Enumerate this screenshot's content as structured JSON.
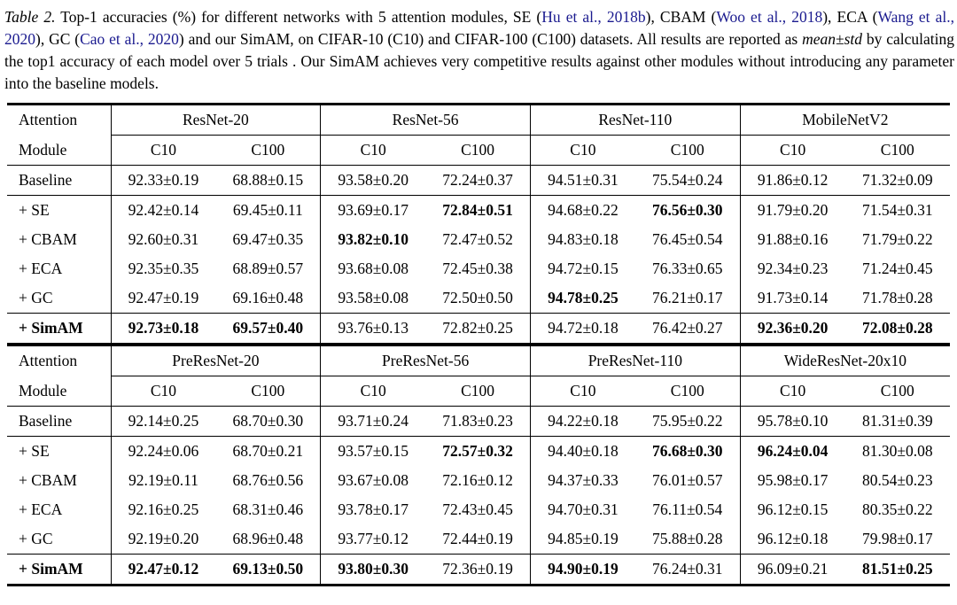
{
  "caption": {
    "segments": [
      {
        "text": "Table 2."
      },
      {
        "text": " Top-1 accuracies (%) for different networks with 5 attention modules, SE ("
      },
      {
        "text": "Hu et al., 2018b"
      },
      {
        "text": "), CBAM ("
      },
      {
        "text": "Woo et al., 2018"
      },
      {
        "text": "), ECA ("
      },
      {
        "text": "Wang et al., 2020"
      },
      {
        "text": "), GC ("
      },
      {
        "text": "Cao et al., 2020"
      },
      {
        "text": ") and our SimAM, on CIFAR-10 (C10) and CIFAR-100 (C100) datasets. All results are reported as "
      },
      {
        "text": "mean±std"
      },
      {
        "text": " by calculating the top1 accuracy of each model over 5 trials . Our SimAM achieves very competitive results against other modules without introducing any parameter into the baseline models."
      }
    ]
  },
  "colors": {
    "citation_blue": "#1b1b8f",
    "text": "#000000",
    "background": "#ffffff"
  },
  "table": {
    "col_header": {
      "line1": "Attention",
      "line2": "Module"
    },
    "subheaders": [
      "C10",
      "C100"
    ],
    "sections": [
      {
        "networks": [
          "ResNet-20",
          "ResNet-56",
          "ResNet-110",
          "MobileNetV2"
        ],
        "rows": [
          {
            "label": "Baseline",
            "bold_label": false,
            "values": [
              "92.33±0.19",
              "68.88±0.15",
              "93.58±0.20",
              "72.24±0.37",
              "94.51±0.31",
              "75.54±0.24",
              "91.86±0.12",
              "71.32±0.09"
            ],
            "bold": [
              false,
              false,
              false,
              false,
              false,
              false,
              false,
              false
            ]
          },
          {
            "label": "+ SE",
            "bold_label": false,
            "values": [
              "92.42±0.14",
              "69.45±0.11",
              "93.69±0.17",
              "72.84±0.51",
              "94.68±0.22",
              "76.56±0.30",
              "91.79±0.20",
              "71.54±0.31"
            ],
            "bold": [
              false,
              false,
              false,
              true,
              false,
              true,
              false,
              false
            ]
          },
          {
            "label": "+ CBAM",
            "bold_label": false,
            "values": [
              "92.60±0.31",
              "69.47±0.35",
              "93.82±0.10",
              "72.47±0.52",
              "94.83±0.18",
              "76.45±0.54",
              "91.88±0.16",
              "71.79±0.22"
            ],
            "bold": [
              false,
              false,
              true,
              false,
              false,
              false,
              false,
              false
            ]
          },
          {
            "label": "+ ECA",
            "bold_label": false,
            "values": [
              "92.35±0.35",
              "68.89±0.57",
              "93.68±0.08",
              "72.45±0.38",
              "94.72±0.15",
              "76.33±0.65",
              "92.34±0.23",
              "71.24±0.45"
            ],
            "bold": [
              false,
              false,
              false,
              false,
              false,
              false,
              false,
              false
            ]
          },
          {
            "label": "+ GC",
            "bold_label": false,
            "values": [
              "92.47±0.19",
              "69.16±0.48",
              "93.58±0.08",
              "72.50±0.50",
              "94.78±0.25",
              "76.21±0.17",
              "91.73±0.14",
              "71.78±0.28"
            ],
            "bold": [
              false,
              false,
              false,
              false,
              true,
              false,
              false,
              false
            ]
          },
          {
            "label": "+ SimAM",
            "bold_label": true,
            "values": [
              "92.73±0.18",
              "69.57±0.40",
              "93.76±0.13",
              "72.82±0.25",
              "94.72±0.18",
              "76.42±0.27",
              "92.36±0.20",
              "72.08±0.28"
            ],
            "bold": [
              true,
              true,
              false,
              false,
              false,
              false,
              true,
              true
            ]
          }
        ]
      },
      {
        "networks": [
          "PreResNet-20",
          "PreResNet-56",
          "PreResNet-110",
          "WideResNet-20x10"
        ],
        "rows": [
          {
            "label": "Baseline",
            "bold_label": false,
            "values": [
              "92.14±0.25",
              "68.70±0.30",
              "93.71±0.24",
              "71.83±0.23",
              "94.22±0.18",
              "75.95±0.22",
              "95.78±0.10",
              "81.31±0.39"
            ],
            "bold": [
              false,
              false,
              false,
              false,
              false,
              false,
              false,
              false
            ]
          },
          {
            "label": "+ SE",
            "bold_label": false,
            "values": [
              "92.24±0.06",
              "68.70±0.21",
              "93.57±0.15",
              "72.57±0.32",
              "94.40±0.18",
              "76.68±0.30",
              "96.24±0.04",
              "81.30±0.08"
            ],
            "bold": [
              false,
              false,
              false,
              true,
              false,
              true,
              true,
              false
            ]
          },
          {
            "label": "+ CBAM",
            "bold_label": false,
            "values": [
              "92.19±0.11",
              "68.76±0.56",
              "93.67±0.08",
              "72.16±0.12",
              "94.37±0.33",
              "76.01±0.57",
              "95.98±0.17",
              "80.54±0.23"
            ],
            "bold": [
              false,
              false,
              false,
              false,
              false,
              false,
              false,
              false
            ]
          },
          {
            "label": "+ ECA",
            "bold_label": false,
            "values": [
              "92.16±0.25",
              "68.31±0.46",
              "93.78±0.17",
              "72.43±0.45",
              "94.70±0.31",
              "76.11±0.54",
              "96.12±0.15",
              "80.35±0.22"
            ],
            "bold": [
              false,
              false,
              false,
              false,
              false,
              false,
              false,
              false
            ]
          },
          {
            "label": "+ GC",
            "bold_label": false,
            "values": [
              "92.19±0.20",
              "68.96±0.48",
              "93.77±0.12",
              "72.44±0.19",
              "94.85±0.19",
              "75.88±0.28",
              "96.12±0.18",
              "79.98±0.17"
            ],
            "bold": [
              false,
              false,
              false,
              false,
              false,
              false,
              false,
              false
            ]
          },
          {
            "label": "+ SimAM",
            "bold_label": true,
            "values": [
              "92.47±0.12",
              "69.13±0.50",
              "93.80±0.30",
              "72.36±0.19",
              "94.90±0.19",
              "76.24±0.31",
              "96.09±0.21",
              "81.51±0.25"
            ],
            "bold": [
              true,
              true,
              true,
              false,
              true,
              false,
              false,
              true
            ]
          }
        ]
      }
    ]
  }
}
